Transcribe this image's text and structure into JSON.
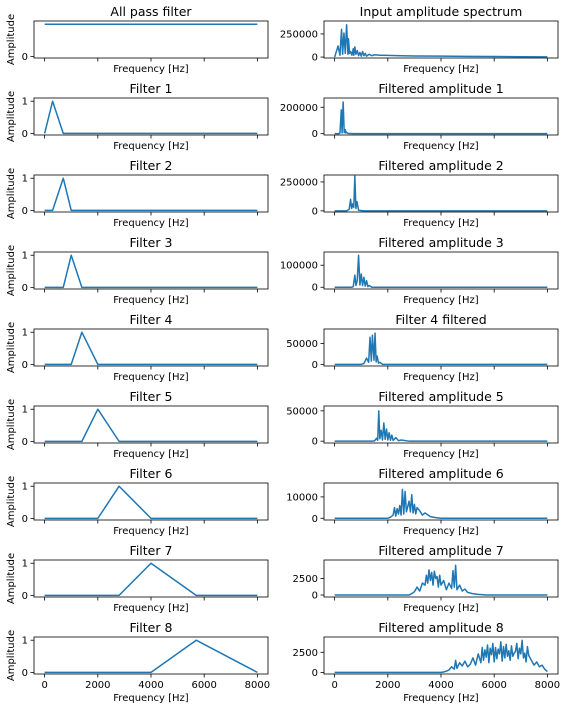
{
  "figure": {
    "rows": 9,
    "cols": 2
  },
  "chart_data": [
    {
      "type": "line",
      "title": "All pass filter",
      "xlabel": "Frequency [Hz]",
      "ylabel": "Amplitude",
      "xlim": [
        -400,
        8400
      ],
      "ylim": [
        -0.05,
        1.1
      ],
      "yticks": [
        {
          "v": 0,
          "t": "0"
        }
      ],
      "x": [
        0,
        8000
      ],
      "y": [
        1,
        1
      ],
      "show_x_ticklabels": false
    },
    {
      "type": "line",
      "title": "Input amplitude spectrum",
      "xlabel": "Frequency [Hz]",
      "ylabel": "",
      "xlim": [
        -400,
        8400
      ],
      "ylim": [
        -10000,
        390000
      ],
      "yticks": [
        {
          "v": 0,
          "t": "0"
        },
        {
          "v": 250000,
          "t": "250000"
        }
      ],
      "x": [
        0,
        130,
        200,
        260,
        300,
        350,
        400,
        450,
        500,
        520,
        560,
        600,
        650,
        700,
        720,
        760,
        800,
        850,
        900,
        950,
        1000,
        1050,
        1100,
        1150,
        1200,
        1300,
        1400,
        1500,
        1700,
        2000,
        2500,
        3000,
        4000,
        5000,
        6000,
        7000,
        8000
      ],
      "y": [
        0,
        120000,
        20000,
        300000,
        30000,
        260000,
        40000,
        350000,
        30000,
        200000,
        40000,
        60000,
        20000,
        90000,
        20000,
        110000,
        30000,
        70000,
        15000,
        50000,
        10000,
        60000,
        15000,
        40000,
        10000,
        30000,
        15000,
        25000,
        20000,
        18000,
        15000,
        12000,
        10000,
        8000,
        6000,
        4000,
        2000
      ],
      "show_x_ticklabels": false
    },
    {
      "type": "line",
      "title": "Filter 1",
      "xlabel": "Frequency [Hz]",
      "ylabel": "Amplitude",
      "xlim": [
        -400,
        8400
      ],
      "ylim": [
        -0.05,
        1.1
      ],
      "yticks": [
        {
          "v": 0,
          "t": "0"
        },
        {
          "v": 1,
          "t": "1"
        }
      ],
      "x": [
        0,
        300,
        700,
        8000
      ],
      "y": [
        0,
        1,
        0,
        0
      ],
      "show_x_ticklabels": false
    },
    {
      "type": "line",
      "title": "Filtered amplitude 1",
      "xlabel": "Frequency [Hz]",
      "ylabel": "",
      "xlim": [
        -400,
        8400
      ],
      "ylim": [
        -10000,
        270000
      ],
      "yticks": [
        {
          "v": 0,
          "t": "0"
        },
        {
          "v": 200000,
          "t": "200000"
        }
      ],
      "x": [
        0,
        150,
        200,
        250,
        280,
        320,
        360,
        400,
        420,
        440,
        500,
        700,
        8000
      ],
      "y": [
        0,
        0,
        5000,
        180000,
        5000,
        240000,
        8000,
        30000,
        5000,
        12000,
        2000,
        0,
        0
      ],
      "show_x_ticklabels": false
    },
    {
      "type": "line",
      "title": "Filter 2",
      "xlabel": "Frequency [Hz]",
      "ylabel": "Amplitude",
      "xlim": [
        -400,
        8400
      ],
      "ylim": [
        -0.05,
        1.1
      ],
      "yticks": [
        {
          "v": 0,
          "t": "0"
        },
        {
          "v": 1,
          "t": "1"
        }
      ],
      "x": [
        0,
        300,
        700,
        1000,
        8000
      ],
      "y": [
        0,
        0,
        1,
        0,
        0
      ],
      "show_x_ticklabels": false
    },
    {
      "type": "line",
      "title": "Filtered amplitude 2",
      "xlabel": "Frequency [Hz]",
      "ylabel": "",
      "xlim": [
        -400,
        8400
      ],
      "ylim": [
        -10000,
        310000
      ],
      "yticks": [
        {
          "v": 0,
          "t": "0"
        },
        {
          "v": 250000,
          "t": "250000"
        }
      ],
      "x": [
        0,
        450,
        550,
        600,
        640,
        680,
        720,
        760,
        800,
        840,
        900,
        1100,
        8000
      ],
      "y": [
        0,
        0,
        15000,
        100000,
        20000,
        60000,
        30000,
        300000,
        20000,
        80000,
        5000,
        0,
        0
      ],
      "show_x_ticklabels": false
    },
    {
      "type": "line",
      "title": "Filter 3",
      "xlabel": "Frequency [Hz]",
      "ylabel": "Amplitude",
      "xlim": [
        -400,
        8400
      ],
      "ylim": [
        -0.05,
        1.1
      ],
      "yticks": [
        {
          "v": 0,
          "t": "0"
        },
        {
          "v": 1,
          "t": "1"
        }
      ],
      "x": [
        0,
        700,
        1000,
        1400,
        8000
      ],
      "y": [
        0,
        0,
        1,
        0,
        0
      ],
      "show_x_ticklabels": false
    },
    {
      "type": "line",
      "title": "Filtered amplitude 3",
      "xlabel": "Frequency [Hz]",
      "ylabel": "",
      "xlim": [
        -400,
        8400
      ],
      "ylim": [
        -8000,
        160000
      ],
      "yticks": [
        {
          "v": 0,
          "t": "0"
        },
        {
          "v": 100000,
          "t": "100000"
        }
      ],
      "x": [
        0,
        650,
        700,
        760,
        800,
        850,
        900,
        950,
        1000,
        1050,
        1100,
        1150,
        1200,
        1250,
        1300,
        1400,
        8000
      ],
      "y": [
        0,
        0,
        3000,
        55000,
        8000,
        30000,
        145000,
        10000,
        60000,
        8000,
        45000,
        5000,
        30000,
        3000,
        8000,
        0,
        0
      ],
      "show_x_ticklabels": false
    },
    {
      "type": "line",
      "title": "Filter 4",
      "xlabel": "Frequency [Hz]",
      "ylabel": "Amplitude",
      "xlim": [
        -400,
        8400
      ],
      "ylim": [
        -0.05,
        1.1
      ],
      "yticks": [
        {
          "v": 0,
          "t": "0"
        },
        {
          "v": 1,
          "t": "1"
        }
      ],
      "x": [
        0,
        1000,
        1400,
        2000,
        8000
      ],
      "y": [
        0,
        0,
        1,
        0,
        0
      ],
      "show_x_ticklabels": false
    },
    {
      "type": "line",
      "title": "Filter 4 filtered",
      "xlabel": "Frequency [Hz]",
      "ylabel": "",
      "xlim": [
        -400,
        8400
      ],
      "ylim": [
        -4000,
        85000
      ],
      "yticks": [
        {
          "v": 0,
          "t": "0"
        },
        {
          "v": 50000,
          "t": "50000"
        }
      ],
      "x": [
        0,
        1000,
        1100,
        1200,
        1280,
        1330,
        1380,
        1420,
        1480,
        1520,
        1560,
        1600,
        1650,
        1700,
        1800,
        8000
      ],
      "y": [
        0,
        0,
        2000,
        15000,
        5000,
        65000,
        8000,
        70000,
        10000,
        75000,
        6000,
        20000,
        3000,
        5000,
        0,
        0
      ],
      "show_x_ticklabels": false
    },
    {
      "type": "line",
      "title": "Filter 5",
      "xlabel": "Frequency [Hz]",
      "ylabel": "Amplitude",
      "xlim": [
        -400,
        8400
      ],
      "ylim": [
        -0.05,
        1.1
      ],
      "yticks": [
        {
          "v": 0,
          "t": "0"
        },
        {
          "v": 1,
          "t": "1"
        }
      ],
      "x": [
        0,
        1400,
        2000,
        2800,
        8000
      ],
      "y": [
        0,
        0,
        1,
        0,
        0
      ],
      "show_x_ticklabels": false
    },
    {
      "type": "line",
      "title": "Filtered amplitude 5",
      "xlabel": "Frequency [Hz]",
      "ylabel": "",
      "xlim": [
        -400,
        8400
      ],
      "ylim": [
        -3000,
        58000
      ],
      "yticks": [
        {
          "v": 0,
          "t": "0"
        },
        {
          "v": 50000,
          "t": "50000"
        }
      ],
      "x": [
        0,
        1400,
        1500,
        1580,
        1620,
        1660,
        1700,
        1750,
        1800,
        1850,
        1900,
        1950,
        2000,
        2050,
        2100,
        2150,
        2200,
        2300,
        2400,
        2500,
        2800,
        8000
      ],
      "y": [
        0,
        0,
        500,
        5000,
        1500,
        50000,
        4000,
        18000,
        2000,
        30000,
        3000,
        20000,
        2000,
        14000,
        1500,
        10000,
        1200,
        6000,
        800,
        2000,
        0,
        0
      ],
      "show_x_ticklabels": false
    },
    {
      "type": "line",
      "title": "Filter 6",
      "xlabel": "Frequency [Hz]",
      "ylabel": "Amplitude",
      "xlim": [
        -400,
        8400
      ],
      "ylim": [
        -0.05,
        1.1
      ],
      "yticks": [
        {
          "v": 0,
          "t": "0"
        },
        {
          "v": 1,
          "t": "1"
        }
      ],
      "x": [
        0,
        2000,
        2800,
        4000,
        8000
      ],
      "y": [
        0,
        0,
        1,
        0,
        0
      ],
      "show_x_ticklabels": false
    },
    {
      "type": "line",
      "title": "Filtered amplitude 6",
      "xlabel": "Frequency [Hz]",
      "ylabel": "",
      "xlim": [
        -400,
        8400
      ],
      "ylim": [
        -800,
        16500
      ],
      "yticks": [
        {
          "v": 0,
          "t": "0"
        },
        {
          "v": 10000,
          "t": "10000"
        }
      ],
      "x": [
        0,
        2000,
        2100,
        2200,
        2250,
        2300,
        2350,
        2400,
        2450,
        2500,
        2550,
        2600,
        2650,
        2700,
        2750,
        2800,
        2850,
        2900,
        2950,
        3000,
        3050,
        3100,
        3200,
        3300,
        3400,
        3600,
        3800,
        4000,
        8000
      ],
      "y": [
        0,
        0,
        500,
        1500,
        5000,
        1000,
        4500,
        2000,
        6000,
        1500,
        13500,
        2000,
        12500,
        3000,
        5500,
        8000,
        3000,
        11000,
        2500,
        6500,
        2000,
        5000,
        3500,
        1500,
        2500,
        800,
        300,
        0,
        0
      ],
      "show_x_ticklabels": false
    },
    {
      "type": "line",
      "title": "Filter 7",
      "xlabel": "Frequency [Hz]",
      "ylabel": "Amplitude",
      "xlim": [
        -400,
        8400
      ],
      "ylim": [
        -0.05,
        1.1
      ],
      "yticks": [
        {
          "v": 0,
          "t": "0"
        },
        {
          "v": 1,
          "t": "1"
        }
      ],
      "x": [
        0,
        2800,
        4000,
        5700,
        8000
      ],
      "y": [
        0,
        0,
        1,
        0,
        0
      ],
      "show_x_ticklabels": false
    },
    {
      "type": "line",
      "title": "Filtered amplitude 7",
      "xlabel": "Frequency [Hz]",
      "ylabel": "",
      "xlim": [
        -400,
        8400
      ],
      "ylim": [
        -300,
        5300
      ],
      "yticks": [
        {
          "v": 0,
          "t": "0"
        },
        {
          "v": 2500,
          "t": "2500"
        }
      ],
      "x": [
        0,
        2800,
        2900,
        3000,
        3100,
        3200,
        3300,
        3400,
        3450,
        3500,
        3550,
        3600,
        3650,
        3700,
        3750,
        3800,
        3850,
        3900,
        3950,
        4000,
        4100,
        4200,
        4300,
        4400,
        4450,
        4500,
        4550,
        4600,
        4700,
        4800,
        4900,
        5000,
        5200,
        5400,
        5700,
        8000
      ],
      "y": [
        0,
        0,
        200,
        500,
        1200,
        600,
        1800,
        1500,
        3000,
        1800,
        3800,
        2200,
        3400,
        1500,
        3600,
        2500,
        2800,
        1200,
        3000,
        1500,
        2200,
        800,
        1800,
        1000,
        3700,
        1200,
        4500,
        800,
        1500,
        600,
        900,
        400,
        200,
        100,
        0,
        0
      ],
      "show_x_ticklabels": true
    },
    {
      "type": "line",
      "title": "Filter 8",
      "xlabel": "Frequency [Hz]",
      "ylabel": "Amplitude",
      "xlim": [
        -400,
        8400
      ],
      "ylim": [
        -0.05,
        1.1
      ],
      "yticks": [
        {
          "v": 0,
          "t": "0"
        },
        {
          "v": 1,
          "t": "1"
        }
      ],
      "x": [
        0,
        4000,
        5700,
        8000
      ],
      "y": [
        0,
        0,
        1,
        0
      ],
      "show_x_ticklabels": true,
      "xticks": [
        {
          "v": 0,
          "t": "0"
        },
        {
          "v": 2000,
          "t": "2000"
        },
        {
          "v": 4000,
          "t": "4000"
        },
        {
          "v": 6000,
          "t": "6000"
        },
        {
          "v": 8000,
          "t": "8000"
        }
      ]
    },
    {
      "type": "line",
      "title": "Filtered amplitude 8",
      "xlabel": "Frequency [Hz]",
      "ylabel": "",
      "xlim": [
        -400,
        8400
      ],
      "ylim": [
        -200,
        4400
      ],
      "yticks": [
        {
          "v": 0,
          "t": "0"
        },
        {
          "v": 2500,
          "t": "2500"
        }
      ],
      "x": [
        0,
        4000,
        4100,
        4200,
        4300,
        4400,
        4500,
        4550,
        4600,
        4700,
        4800,
        4900,
        5000,
        5100,
        5200,
        5300,
        5400,
        5500,
        5550,
        5600,
        5650,
        5700,
        5750,
        5800,
        5850,
        5900,
        5950,
        6000,
        6050,
        6100,
        6150,
        6200,
        6250,
        6300,
        6350,
        6400,
        6450,
        6500,
        6550,
        6600,
        6650,
        6700,
        6750,
        6800,
        6850,
        6900,
        6950,
        7000,
        7050,
        7100,
        7150,
        7200,
        7250,
        7300,
        7400,
        7500,
        7600,
        7700,
        7800,
        7900,
        8000
      ],
      "y": [
        0,
        0,
        50,
        150,
        300,
        700,
        400,
        1500,
        500,
        1200,
        800,
        1400,
        700,
        1000,
        1800,
        900,
        2300,
        1200,
        3100,
        1500,
        2800,
        1900,
        3400,
        1200,
        3000,
        2200,
        3600,
        1300,
        3100,
        1700,
        2900,
        2300,
        3800,
        1400,
        3200,
        1800,
        3500,
        2000,
        2700,
        1500,
        3300,
        2000,
        2400,
        2600,
        3600,
        1700,
        3000,
        2300,
        4000,
        1800,
        2400,
        1300,
        3200,
        2100,
        1500,
        900,
        1300,
        700,
        900,
        400,
        100
      ],
      "show_x_ticklabels": true,
      "xticks": [
        {
          "v": 0,
          "t": "0"
        },
        {
          "v": 2000,
          "t": "2000"
        },
        {
          "v": 4000,
          "t": "4000"
        },
        {
          "v": 6000,
          "t": "6000"
        },
        {
          "v": 8000,
          "t": "8000"
        }
      ]
    }
  ]
}
